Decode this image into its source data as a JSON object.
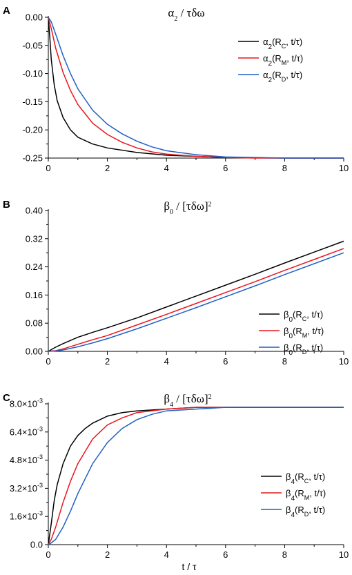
{
  "chart_data": [
    {
      "type": "line",
      "panel": "A",
      "title": {
        "sym": "α",
        "sub": "2",
        "rest": " / τδω",
        "sup": ""
      },
      "xlabel": "",
      "x_ticks": [
        "0",
        "2",
        "4",
        "6",
        "8",
        "10"
      ],
      "xlim": [
        0,
        10
      ],
      "ylim": [
        -0.25,
        0.0
      ],
      "y_ticks": [
        {
          "value": 0.0,
          "label": "0.00"
        },
        {
          "value": -0.05,
          "label": "-0.05"
        },
        {
          "value": -0.1,
          "label": "-0.10"
        },
        {
          "value": -0.15,
          "label": "-0.15"
        },
        {
          "value": -0.2,
          "label": "-0.20"
        },
        {
          "value": -0.25,
          "label": "-0.25"
        }
      ],
      "legend_position": "top-right",
      "series": [
        {
          "label": {
            "sym": "α",
            "sub": "2",
            "r_sub": "C"
          },
          "color": "#000000",
          "x": [
            0,
            0.05,
            0.1,
            0.2,
            0.3,
            0.5,
            0.75,
            1,
            1.5,
            2,
            3,
            4,
            5,
            6,
            8,
            10
          ],
          "y": [
            0,
            -0.035,
            -0.075,
            -0.12,
            -0.148,
            -0.178,
            -0.2,
            -0.213,
            -0.225,
            -0.232,
            -0.24,
            -0.245,
            -0.247,
            -0.249,
            -0.25,
            -0.25
          ]
        },
        {
          "label": {
            "sym": "α",
            "sub": "2",
            "r_sub": "M"
          },
          "color": "#e8161c",
          "x": [
            0,
            0.1,
            0.25,
            0.5,
            0.75,
            1,
            1.5,
            2,
            2.5,
            3,
            3.5,
            4,
            5,
            6,
            7,
            8,
            10
          ],
          "y": [
            0,
            -0.02,
            -0.055,
            -0.098,
            -0.13,
            -0.155,
            -0.188,
            -0.208,
            -0.222,
            -0.232,
            -0.239,
            -0.243,
            -0.247,
            -0.249,
            -0.25,
            -0.25,
            -0.25
          ]
        },
        {
          "label": {
            "sym": "α",
            "sub": "2",
            "r_sub": "D"
          },
          "color": "#1f5fc4",
          "x": [
            0,
            0.1,
            0.25,
            0.5,
            0.75,
            1,
            1.5,
            2,
            2.5,
            3,
            3.5,
            4,
            5,
            6,
            7,
            8,
            10
          ],
          "y": [
            0,
            -0.008,
            -0.03,
            -0.068,
            -0.1,
            -0.127,
            -0.165,
            -0.19,
            -0.207,
            -0.22,
            -0.23,
            -0.237,
            -0.244,
            -0.248,
            -0.249,
            -0.25,
            -0.25
          ]
        }
      ]
    },
    {
      "type": "line",
      "panel": "B",
      "title": {
        "sym": "β",
        "sub": "0",
        "rest": " / [τδω]",
        "sup": "2"
      },
      "xlabel": "",
      "x_ticks": [
        "0",
        "2",
        "4",
        "6",
        "8",
        "10"
      ],
      "xlim": [
        0,
        10
      ],
      "ylim": [
        0.0,
        0.4
      ],
      "y_ticks": [
        {
          "value": 0.0,
          "label": "0.00"
        },
        {
          "value": 0.08,
          "label": "0.08"
        },
        {
          "value": 0.16,
          "label": "0.16"
        },
        {
          "value": 0.24,
          "label": "0.24"
        },
        {
          "value": 0.32,
          "label": "0.32"
        },
        {
          "value": 0.4,
          "label": "0.40"
        }
      ],
      "legend_position": "bottom-right",
      "series": [
        {
          "label": {
            "sym": "β",
            "sub": "0",
            "r_sub": "C"
          },
          "color": "#000000",
          "x": [
            0,
            0.25,
            0.5,
            1,
            1.5,
            2,
            3,
            4,
            5,
            6,
            7,
            8,
            9,
            10
          ],
          "y": [
            0,
            0.012,
            0.022,
            0.04,
            0.054,
            0.067,
            0.095,
            0.126,
            0.157,
            0.188,
            0.219,
            0.251,
            0.282,
            0.313
          ]
        },
        {
          "label": {
            "sym": "β",
            "sub": "0",
            "r_sub": "M"
          },
          "color": "#e8161c",
          "x": [
            0,
            0.25,
            0.5,
            1,
            1.5,
            2,
            3,
            4,
            5,
            6,
            7,
            8,
            9,
            10
          ],
          "y": [
            0,
            0.002,
            0.007,
            0.02,
            0.033,
            0.045,
            0.075,
            0.105,
            0.136,
            0.167,
            0.198,
            0.23,
            0.261,
            0.292
          ]
        },
        {
          "label": {
            "sym": "β",
            "sub": "0",
            "r_sub": "D"
          },
          "color": "#1f5fc4",
          "x": [
            0,
            0.25,
            0.5,
            1,
            1.5,
            2,
            3,
            4,
            5,
            6,
            7,
            8,
            9,
            10
          ],
          "y": [
            0,
            0.001,
            0.004,
            0.013,
            0.024,
            0.036,
            0.064,
            0.094,
            0.124,
            0.155,
            0.186,
            0.218,
            0.249,
            0.28
          ]
        }
      ]
    },
    {
      "type": "line",
      "panel": "C",
      "title": {
        "sym": "β",
        "sub": "4",
        "rest": " / [τδω]",
        "sup": "2"
      },
      "xlabel": "t / τ",
      "x_ticks": [
        "0",
        "2",
        "4",
        "6",
        "8",
        "10"
      ],
      "xlim": [
        0,
        10
      ],
      "ylim": [
        0.0,
        0.008
      ],
      "y_ticks": [
        {
          "value": 0.0,
          "label": "0.0",
          "exp": ""
        },
        {
          "value": 0.0016,
          "label": "1.6×10",
          "exp": "-3"
        },
        {
          "value": 0.0032,
          "label": "3.2×10",
          "exp": "-3"
        },
        {
          "value": 0.0048,
          "label": "4.8×10",
          "exp": "-3"
        },
        {
          "value": 0.0064,
          "label": "6.4×10",
          "exp": "-3"
        },
        {
          "value": 0.008,
          "label": "8.0×10",
          "exp": "-3"
        }
      ],
      "legend_position": "bottom-right",
      "series": [
        {
          "label": {
            "sym": "β",
            "sub": "4",
            "r_sub": "C"
          },
          "color": "#000000",
          "x": [
            0,
            0.1,
            0.2,
            0.3,
            0.5,
            0.75,
            1,
            1.25,
            1.5,
            2,
            2.5,
            3,
            4,
            5,
            6,
            8,
            10
          ],
          "y": [
            0,
            0.0012,
            0.0025,
            0.0034,
            0.0046,
            0.0056,
            0.0062,
            0.0066,
            0.0069,
            0.0073,
            0.0075,
            0.0076,
            0.0077,
            0.0078,
            0.0078,
            0.0078,
            0.0078
          ]
        },
        {
          "label": {
            "sym": "β",
            "sub": "4",
            "r_sub": "M"
          },
          "color": "#e8161c",
          "x": [
            0,
            0.1,
            0.25,
            0.5,
            0.75,
            1,
            1.5,
            2,
            2.5,
            3,
            3.5,
            4,
            5,
            6,
            7,
            8,
            10
          ],
          "y": [
            0,
            0.0003,
            0.001,
            0.0024,
            0.0036,
            0.0046,
            0.006,
            0.0068,
            0.0072,
            0.0075,
            0.0076,
            0.0077,
            0.0078,
            0.0078,
            0.0078,
            0.0078,
            0.0078
          ]
        },
        {
          "label": {
            "sym": "β",
            "sub": "4",
            "r_sub": "D"
          },
          "color": "#1f5fc4",
          "x": [
            0,
            0.1,
            0.25,
            0.5,
            0.75,
            1,
            1.5,
            2,
            2.5,
            3,
            3.5,
            4,
            5,
            6,
            7,
            8,
            10
          ],
          "y": [
            0,
            0.0001,
            0.0003,
            0.001,
            0.0019,
            0.0029,
            0.0046,
            0.0058,
            0.0066,
            0.0071,
            0.0074,
            0.0076,
            0.0077,
            0.0078,
            0.0078,
            0.0078,
            0.0078
          ]
        }
      ]
    }
  ],
  "legend_var": "t/τ"
}
